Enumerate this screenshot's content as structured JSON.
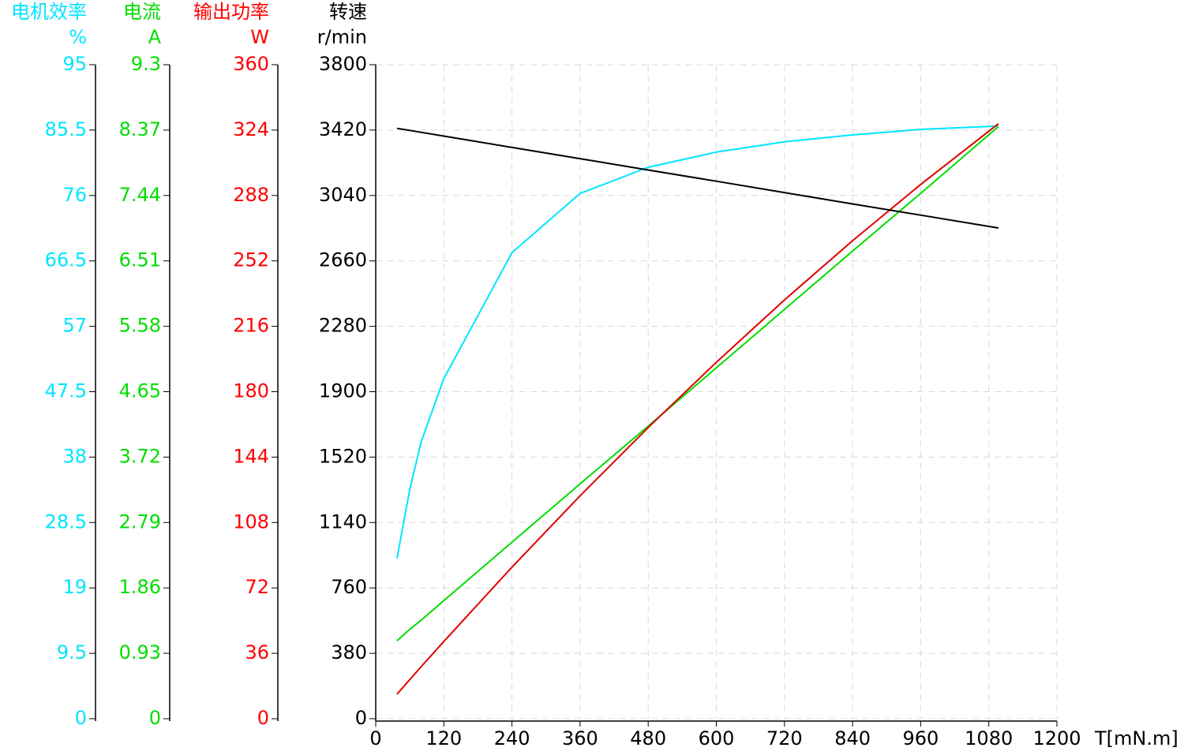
{
  "chart_data": {
    "type": "line",
    "x": [
      37.5,
      60,
      80,
      120,
      240,
      360,
      480,
      600,
      720,
      840,
      960,
      1097
    ],
    "xlim": [
      0,
      1200
    ],
    "xticks": [
      0,
      120,
      240,
      360,
      480,
      600,
      720,
      840,
      960,
      1080,
      1200
    ],
    "xlabel": "T[mN.m]",
    "ylabel": "电机效率",
    "yunit": "%",
    "ycolor": "#00e5ff",
    "ylim": [
      0,
      95
    ],
    "yticks": [
      0,
      9.5,
      19,
      28.5,
      38,
      47.5,
      57,
      66.5,
      76,
      85.5,
      95
    ],
    "y2label": "电流",
    "y2unit": "A",
    "y2color": "#00dd00",
    "y2lim": [
      0,
      9.3
    ],
    "y2ticks": [
      0,
      0.93,
      1.86,
      2.79,
      3.72,
      4.65,
      5.58,
      6.51,
      7.44,
      8.37,
      9.3
    ],
    "y3label": "输出功率",
    "y3unit": "W",
    "y3color": "#ff0000",
    "y3lim": [
      0,
      360
    ],
    "y3ticks": [
      0,
      36,
      72,
      108,
      144,
      180,
      216,
      252,
      288,
      324,
      360
    ],
    "y4label": "转速",
    "y4unit": "r/min",
    "y4color": "#000000",
    "y4lim": [
      0,
      3800
    ],
    "y4ticks": [
      0,
      380,
      760,
      1140,
      1520,
      1900,
      2280,
      2660,
      3040,
      3420,
      3800
    ],
    "grid": true,
    "series": [
      {
        "axis": "y",
        "color": "#00e5ff",
        "values": [
          23.3,
          33.3,
          40.2,
          49.4,
          67.7,
          76.3,
          80.1,
          82.3,
          83.8,
          84.8,
          85.6,
          86.1
        ]
      },
      {
        "axis": "y2",
        "color": "#00dd00",
        "values": [
          1.11,
          1.27,
          1.4,
          1.68,
          2.51,
          3.34,
          4.16,
          4.99,
          5.82,
          6.65,
          7.47,
          8.42
        ]
      },
      {
        "axis": "y3",
        "color": "#e00000",
        "values": [
          13.5,
          21.5,
          28.6,
          42.5,
          83.4,
          122.7,
          160.3,
          196.2,
          230.5,
          263.1,
          294.1,
          327.5
        ]
      },
      {
        "axis": "y4",
        "color": "#000000",
        "values": [
          3430,
          3418,
          3407,
          3385,
          3319,
          3254,
          3188,
          3123,
          3057,
          2991,
          2926,
          2851
        ]
      }
    ]
  }
}
